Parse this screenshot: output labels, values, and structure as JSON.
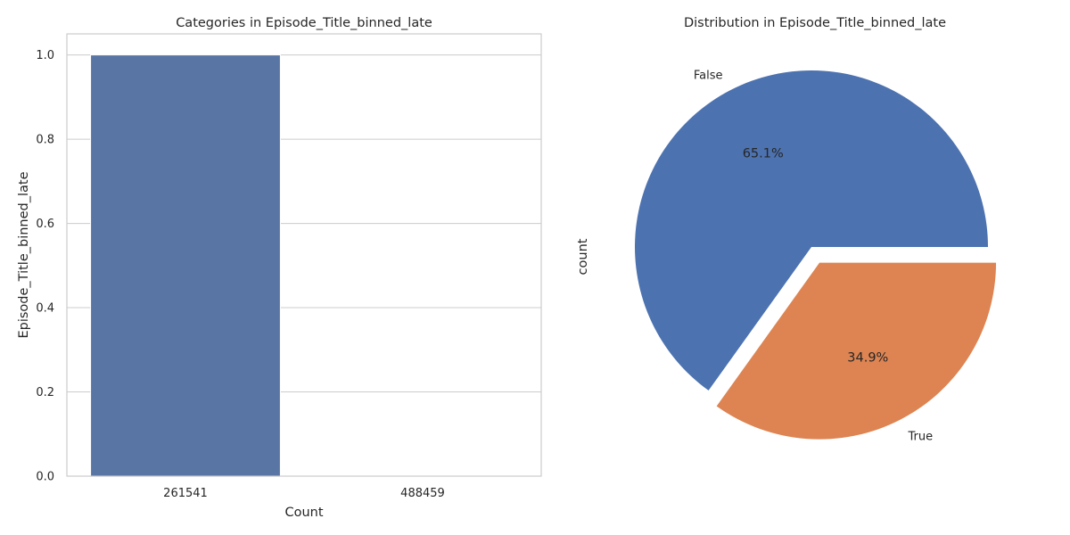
{
  "chart_data": [
    {
      "type": "bar",
      "title": "Categories in Episode_Title_binned_late",
      "xlabel": "Count",
      "ylabel": "Episode_Title_binned_late",
      "categories": [
        "261541",
        "488459"
      ],
      "values": [
        1.0,
        0.0
      ],
      "ylim": [
        0,
        1.05
      ],
      "yticks": [
        "0.0",
        "0.2",
        "0.4",
        "0.6",
        "0.8",
        "1.0"
      ],
      "grid": true,
      "color": "#5875a4"
    },
    {
      "type": "pie",
      "title": "Distribution in Episode_Title_binned_late",
      "ylabel": "count",
      "labels": [
        "False",
        "True"
      ],
      "values": [
        65.1,
        34.9
      ],
      "pct_labels": [
        "65.1%",
        "34.9%"
      ],
      "colors": [
        "#4c72b0",
        "#dd8452"
      ],
      "explode": [
        0,
        0.1
      ]
    }
  ]
}
